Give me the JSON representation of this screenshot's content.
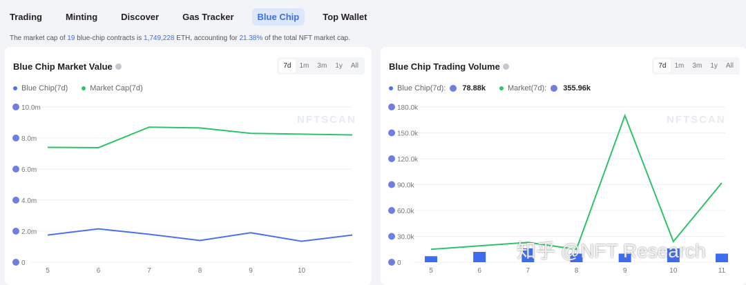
{
  "tabs": [
    "Trading",
    "Minting",
    "Discover",
    "Gas Tracker",
    "Blue Chip",
    "Top Wallet"
  ],
  "active_tab": "Blue Chip",
  "summary": {
    "p1": "The market cap of ",
    "count": "19",
    "p2": " blue-chip contracts is ",
    "eth": "1,749,228",
    "p3": " ETH, accounting for ",
    "pct": "21.38%",
    "p4": " of the total NFT market cap."
  },
  "ranges": [
    "7d",
    "1m",
    "3m",
    "1y",
    "All"
  ],
  "watermark": "知乎 @NFT Research",
  "chart_watermark": "NFTSCAN",
  "colors": {
    "blue": "#4a72e8",
    "green": "#2cc36b",
    "accent": "#3b6de8"
  },
  "left": {
    "title": "Blue Chip Market Value",
    "legend": [
      "Blue Chip(7d)",
      "Market Cap(7d)"
    ]
  },
  "right": {
    "title": "Blue Chip Trading Volume",
    "legend": [
      "Blue Chip(7d):",
      "Market(7d):"
    ],
    "legend_values": [
      "78.88k",
      "355.96k"
    ]
  },
  "chart_data": [
    {
      "type": "line",
      "title": "Blue Chip Market Value",
      "x": [
        5,
        6,
        7,
        8,
        9,
        10,
        11
      ],
      "xticks": [
        "5",
        "6",
        "7",
        "8",
        "9",
        "10"
      ],
      "yticks": [
        "0",
        "2.0m",
        "4.0m",
        "6.0m",
        "8.0m",
        "10.0m"
      ],
      "ylim": [
        0,
        10000000
      ],
      "series": [
        {
          "name": "Blue Chip(7d)",
          "values": [
            1750000,
            2150000,
            1800000,
            1400000,
            1900000,
            1350000,
            1750000
          ]
        },
        {
          "name": "Market Cap(7d)",
          "values": [
            7400000,
            7380000,
            8700000,
            8650000,
            8300000,
            8250000,
            8200000
          ]
        }
      ]
    },
    {
      "type": "bar+line",
      "title": "Blue Chip Trading Volume",
      "x": [
        5,
        6,
        7,
        8,
        9,
        10,
        11
      ],
      "xticks": [
        "5",
        "6",
        "7",
        "8",
        "9",
        "10",
        "11"
      ],
      "yticks": [
        "0",
        "30.0k",
        "60.0k",
        "90.0k",
        "120.0k",
        "150.0k",
        "180.0k"
      ],
      "ylim": [
        0,
        180000
      ],
      "series": [
        {
          "name": "Blue Chip(7d)",
          "type": "bar",
          "values": [
            7000,
            12000,
            16000,
            10000,
            10000,
            16000,
            10000
          ]
        },
        {
          "name": "Market(7d)",
          "type": "line",
          "values": [
            15000,
            19000,
            23000,
            15000,
            170000,
            24000,
            92000
          ]
        }
      ]
    }
  ]
}
